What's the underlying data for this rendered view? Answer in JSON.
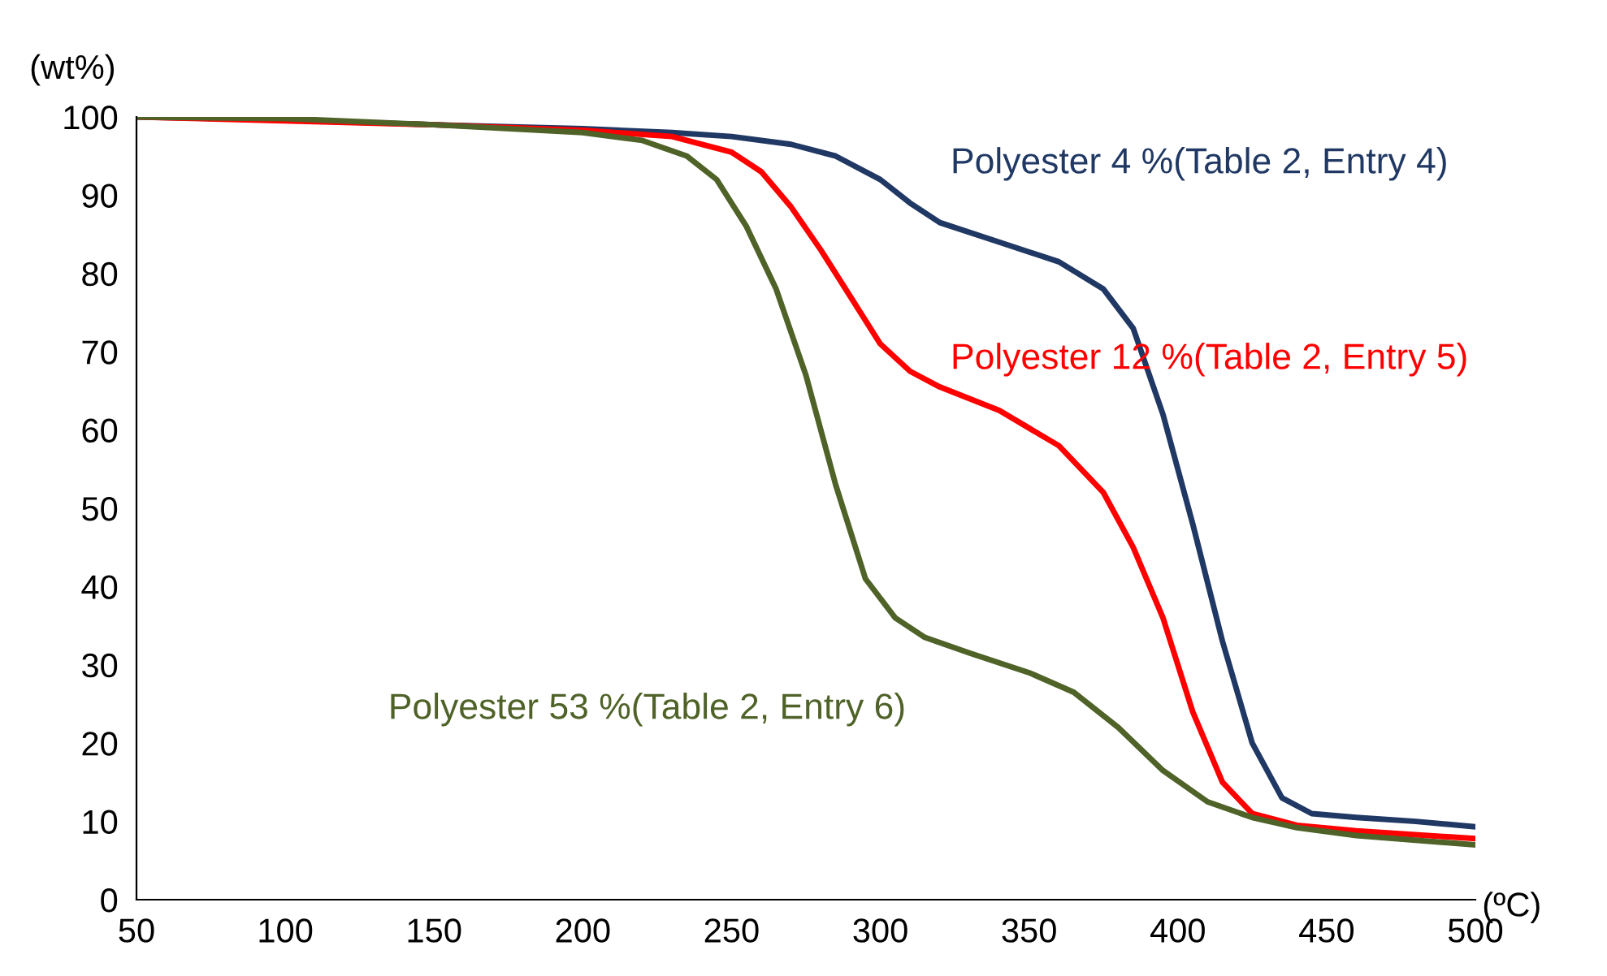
{
  "chart_data": {
    "type": "line",
    "xlabel": "(ºC)",
    "ylabel": "(wt%)",
    "xlim": [
      50,
      500
    ],
    "ylim": [
      0,
      100
    ],
    "xticks": [
      50,
      100,
      150,
      200,
      250,
      300,
      350,
      400,
      450,
      500
    ],
    "yticks": [
      0,
      10,
      20,
      30,
      40,
      50,
      60,
      70,
      80,
      90,
      100
    ],
    "grid": false,
    "legend": false,
    "marker": "none",
    "line_style": "solid",
    "series": [
      {
        "name": "Polyester 4 %(Table 2, Entry 4)",
        "color": "#203864",
        "x": [
          50,
          100,
          150,
          200,
          230,
          250,
          270,
          285,
          300,
          310,
          320,
          340,
          360,
          375,
          385,
          395,
          405,
          415,
          425,
          435,
          445,
          460,
          480,
          500
        ],
        "values": [
          100,
          99.6,
          99,
          98.5,
          98,
          97.5,
          96.5,
          95,
          92,
          89,
          86.5,
          84,
          81.5,
          78,
          73,
          62,
          48,
          33,
          20,
          13,
          11,
          10.5,
          10,
          9.3
        ]
      },
      {
        "name": "Polyester 12 %(Table 2, Entry 5)",
        "color": "#ff0000",
        "x": [
          50,
          150,
          200,
          230,
          250,
          260,
          270,
          280,
          290,
          300,
          310,
          320,
          340,
          360,
          375,
          385,
          395,
          405,
          415,
          425,
          440,
          460,
          500
        ],
        "values": [
          100,
          99,
          98.3,
          97.5,
          95.5,
          93,
          88.5,
          83,
          77,
          71,
          67.5,
          65.5,
          62.5,
          58,
          52,
          45,
          36,
          24,
          15,
          11,
          9.5,
          8.8,
          7.8
        ]
      },
      {
        "name": "Polyester 53 %(Table 2, Entry 6)",
        "color": "#4f6228",
        "x": [
          50,
          100,
          150,
          200,
          220,
          235,
          245,
          255,
          265,
          275,
          285,
          295,
          305,
          315,
          330,
          350,
          365,
          380,
          395,
          410,
          425,
          440,
          460,
          500
        ],
        "values": [
          100,
          99.8,
          99,
          98,
          97,
          95,
          92,
          86,
          78,
          67,
          53,
          41,
          36,
          33.5,
          31.5,
          29,
          26.5,
          22,
          16.5,
          12.5,
          10.5,
          9.2,
          8.2,
          7
        ]
      }
    ]
  }
}
